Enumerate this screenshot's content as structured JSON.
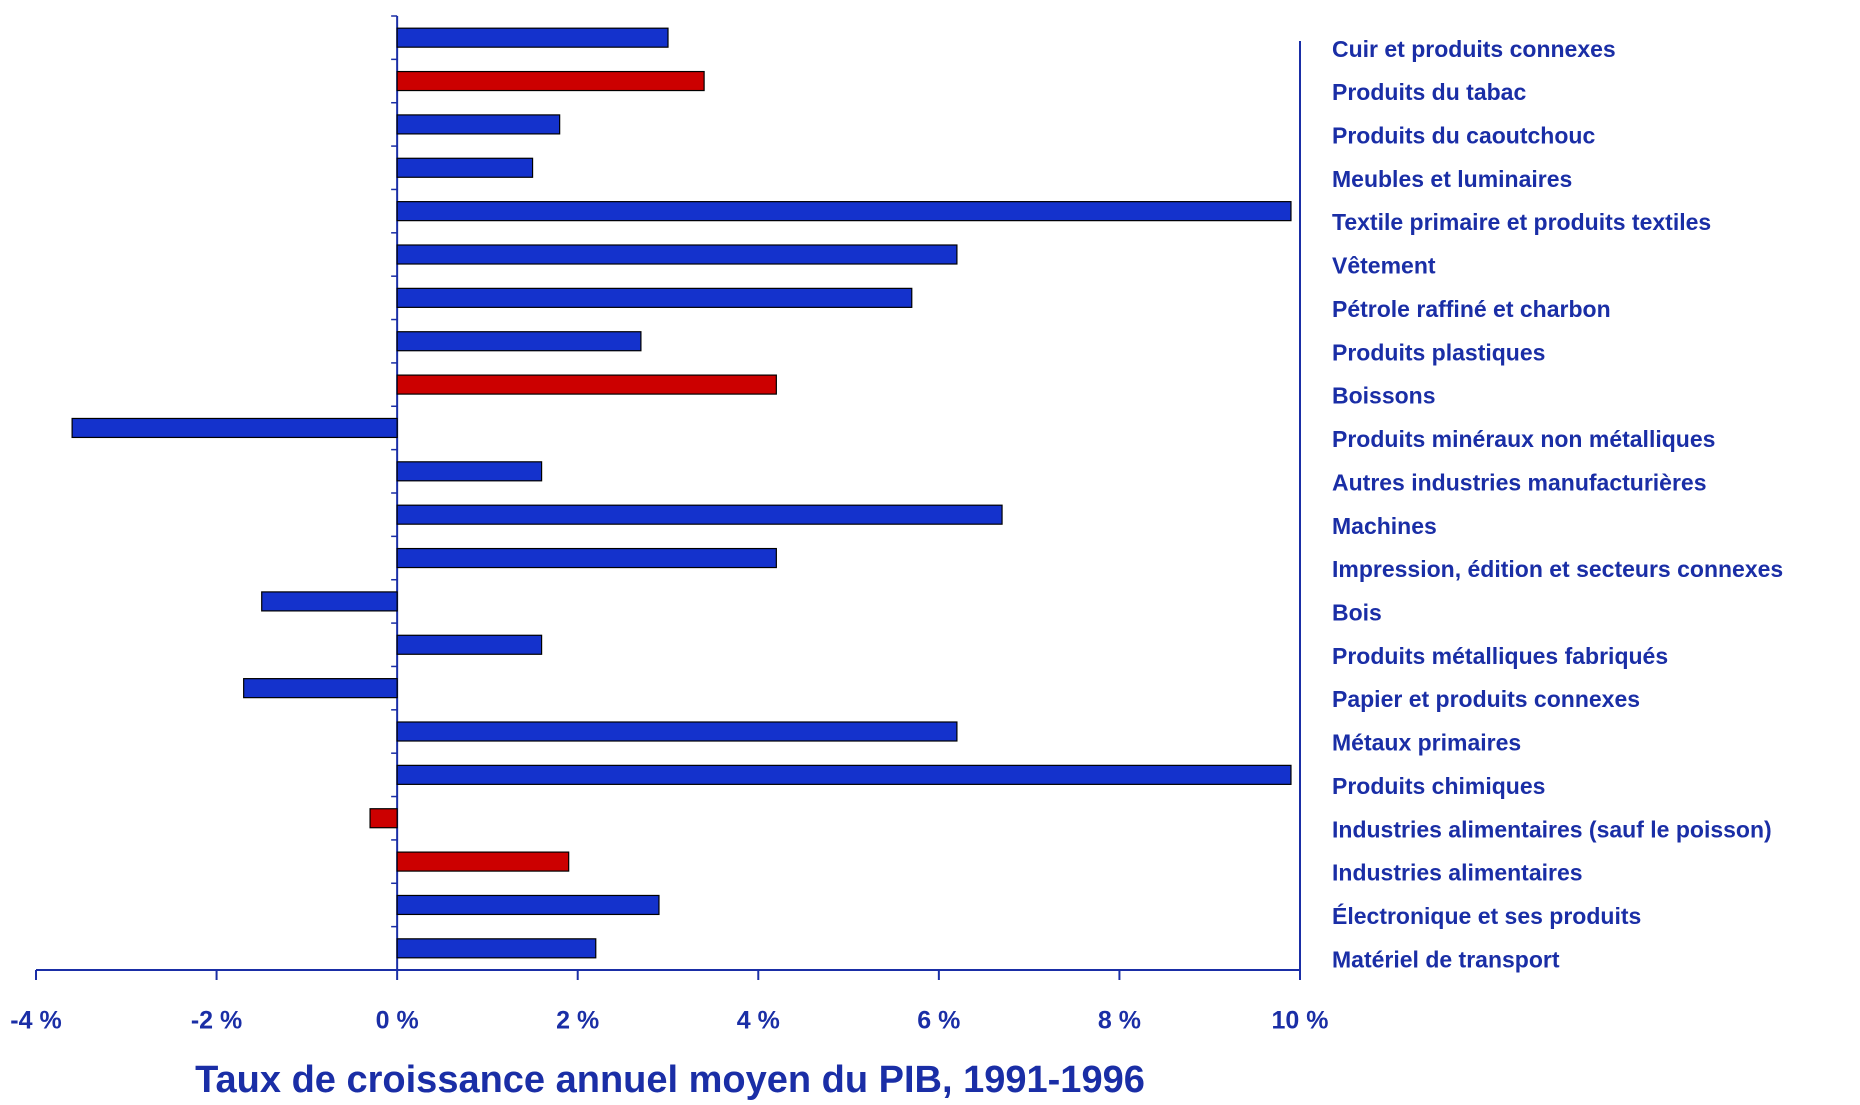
{
  "chart_data": {
    "type": "hbar",
    "xlabel": "Taux de croissance annuel moyen du PIB, 1991-1996",
    "categories": [
      "Cuir et produits connexes",
      "Produits du tabac",
      "Produits du caoutchouc",
      "Meubles et luminaires",
      "Textile primaire et produits textiles",
      "Vêtement",
      "Pétrole raffiné et charbon",
      "Produits plastiques",
      "Boissons",
      "Produits minéraux non métalliques",
      "Autres industries manufacturières",
      "Machines",
      "Impression, édition et secteurs connexes",
      "Bois",
      "Produits métalliques fabriqués",
      "Papier et produits connexes",
      "Métaux primaires",
      "Produits chimiques",
      "Industries alimentaires (sauf le poisson)",
      "Industries alimentaires",
      "Électronique et ses produits",
      "Matériel de transport"
    ],
    "values": [
      3.0,
      3.4,
      1.8,
      1.5,
      9.9,
      6.2,
      5.7,
      2.7,
      4.2,
      -3.6,
      1.6,
      6.7,
      4.2,
      -1.5,
      1.6,
      -1.7,
      6.2,
      9.9,
      -0.3,
      1.9,
      2.9,
      2.2
    ],
    "colors": [
      "#1432cc",
      "#cc0000",
      "#1432cc",
      "#1432cc",
      "#1432cc",
      "#1432cc",
      "#1432cc",
      "#1432cc",
      "#cc0000",
      "#1432cc",
      "#1432cc",
      "#1432cc",
      "#1432cc",
      "#1432cc",
      "#1432cc",
      "#1432cc",
      "#1432cc",
      "#1432cc",
      "#cc0000",
      "#cc0000",
      "#1432cc",
      "#1432cc"
    ],
    "xlim": [
      -4,
      10
    ],
    "xticks": [
      {
        "value": -4,
        "label": "-4 %"
      },
      {
        "value": -2,
        "label": "-2 %"
      },
      {
        "value": 0,
        "label": "0 %"
      },
      {
        "value": 2,
        "label": "2 %"
      },
      {
        "value": 4,
        "label": "4 %"
      },
      {
        "value": 6,
        "label": "6 %"
      },
      {
        "value": 8,
        "label": "8 %"
      },
      {
        "value": 10,
        "label": "10 %"
      }
    ]
  }
}
